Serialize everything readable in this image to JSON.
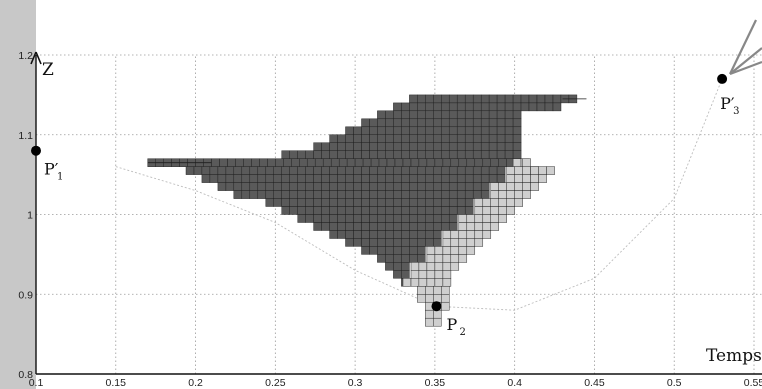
{
  "chart_data": {
    "type": "scatter",
    "title": "",
    "xlabel": "Temps",
    "ylabel": "Z",
    "xlim": [
      0.1,
      0.55
    ],
    "ylim": [
      0.8,
      1.2
    ],
    "xticks": [
      0.1,
      0.15,
      0.2,
      0.25,
      0.3,
      0.35,
      0.4,
      0.45,
      0.5,
      0.55
    ],
    "xtick_labels": [
      "0.1",
      "0.15",
      "0.2",
      "0.25",
      "0.3",
      "0.35",
      "0.4",
      "0.45",
      "0.5",
      "0.55"
    ],
    "yticks": [
      0.8,
      0.9,
      1.0,
      1.1,
      1.2
    ],
    "ytick_labels": [
      "0.8",
      "0.9",
      "1",
      "1.1",
      "1.2"
    ],
    "grid": true,
    "points": [
      {
        "label": "P",
        "sub": "1",
        "prime": true,
        "x": 0.1,
        "y": 1.08
      },
      {
        "label": "P",
        "sub": "2",
        "prime": false,
        "x": 0.351,
        "y": 0.885
      },
      {
        "label": "P",
        "sub": "3",
        "prime": true,
        "x": 0.53,
        "y": 1.17
      }
    ],
    "regions": [
      {
        "name": "dark-grid-region",
        "color": "#5a5a5a",
        "cell_dx": 0.005,
        "cell_dz": 0.01,
        "rows": [
          [
            1.14,
            0.334,
            0.44
          ],
          [
            1.13,
            0.324,
            0.43
          ],
          [
            1.12,
            0.314,
            0.405
          ],
          [
            1.11,
            0.304,
            0.405
          ],
          [
            1.1,
            0.294,
            0.405
          ],
          [
            1.09,
            0.284,
            0.405
          ],
          [
            1.08,
            0.274,
            0.405
          ],
          [
            1.07,
            0.254,
            0.405
          ],
          [
            1.06,
            0.17,
            0.405
          ],
          [
            1.05,
            0.194,
            0.395
          ],
          [
            1.04,
            0.204,
            0.395
          ],
          [
            1.03,
            0.214,
            0.385
          ],
          [
            1.02,
            0.224,
            0.385
          ],
          [
            1.01,
            0.244,
            0.375
          ],
          [
            1.0,
            0.254,
            0.375
          ],
          [
            0.99,
            0.264,
            0.365
          ],
          [
            0.98,
            0.274,
            0.365
          ],
          [
            0.97,
            0.284,
            0.355
          ],
          [
            0.96,
            0.294,
            0.355
          ],
          [
            0.95,
            0.304,
            0.345
          ],
          [
            0.94,
            0.314,
            0.345
          ],
          [
            0.93,
            0.319,
            0.335
          ],
          [
            0.92,
            0.324,
            0.335
          ],
          [
            0.91,
            0.329,
            0.33
          ]
        ]
      },
      {
        "name": "light-grid-region",
        "color": "#cfcfcf",
        "cell_dx": 0.005,
        "cell_dz": 0.01,
        "rows": [
          [
            1.06,
            0.399,
            0.41
          ],
          [
            1.05,
            0.395,
            0.425
          ],
          [
            1.04,
            0.395,
            0.42
          ],
          [
            1.03,
            0.385,
            0.415
          ],
          [
            1.02,
            0.385,
            0.41
          ],
          [
            1.01,
            0.375,
            0.405
          ],
          [
            1.0,
            0.375,
            0.4
          ],
          [
            0.99,
            0.365,
            0.395
          ],
          [
            0.98,
            0.365,
            0.39
          ],
          [
            0.97,
            0.355,
            0.385
          ],
          [
            0.96,
            0.355,
            0.38
          ],
          [
            0.95,
            0.345,
            0.375
          ],
          [
            0.94,
            0.345,
            0.37
          ],
          [
            0.93,
            0.335,
            0.365
          ],
          [
            0.92,
            0.335,
            0.36
          ],
          [
            0.91,
            0.33,
            0.36
          ],
          [
            0.9,
            0.339,
            0.36
          ],
          [
            0.89,
            0.339,
            0.36
          ],
          [
            0.88,
            0.344,
            0.36
          ],
          [
            0.87,
            0.344,
            0.355
          ],
          [
            0.86,
            0.344,
            0.355
          ]
        ]
      }
    ],
    "isolated_cells": [
      {
        "x": 0.405,
        "y": 1.06,
        "color": "#cfcfcf"
      },
      {
        "x": 0.41,
        "y": 1.05,
        "color": "#cfcfcf"
      }
    ],
    "curve": [
      [
        0.15,
        1.06
      ],
      [
        0.2,
        1.03
      ],
      [
        0.25,
        0.99
      ],
      [
        0.3,
        0.93
      ],
      [
        0.35,
        0.885
      ],
      [
        0.4,
        0.88
      ],
      [
        0.45,
        0.92
      ],
      [
        0.5,
        1.02
      ],
      [
        0.53,
        1.17
      ]
    ]
  }
}
